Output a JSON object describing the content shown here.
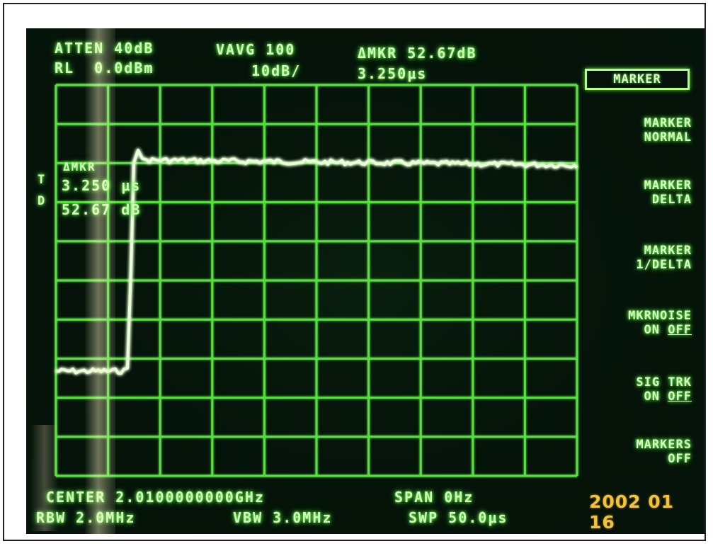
{
  "header": {
    "atten": "ATTEN 40dB",
    "rl": "RL  0.0dBm",
    "vavg": "VAVG 100",
    "scale": "10dB/",
    "delta_mkr": "ΔMKR 52.67dB",
    "delta_time": "3.250μs"
  },
  "marker_readout": {
    "title": "ΔMKR",
    "time": "3.250 μs",
    "level": "52.67 dB",
    "side_t": "T",
    "side_d": "D"
  },
  "softkeys": {
    "title": "MARKER",
    "normal": [
      "MARKER",
      "NORMAL"
    ],
    "delta": [
      "MARKER",
      "DELTA"
    ],
    "inv_delta": [
      "MARKER",
      "1/DELTA"
    ],
    "mkrnoise": {
      "line1": "MKRNOISE",
      "on": "ON",
      "off": "OFF"
    },
    "sig_trk": {
      "line1": "SIG TRK",
      "on": "ON",
      "off": "OFF"
    },
    "markers_off": [
      "MARKERS",
      "OFF"
    ]
  },
  "footer": {
    "center": "CENTER 2.0100000000GHz",
    "span": "SPAN 0Hz",
    "rbw": "RBW 2.0MHz",
    "vbw": "VBW 3.0MHz",
    "swp": "SWP 50.0μs"
  },
  "date_stamp": "2002 01 16",
  "colors": {
    "trace": "#e8ffd8",
    "grid": "#58e040",
    "background": "#05140a",
    "date": "#f1c33a"
  }
}
